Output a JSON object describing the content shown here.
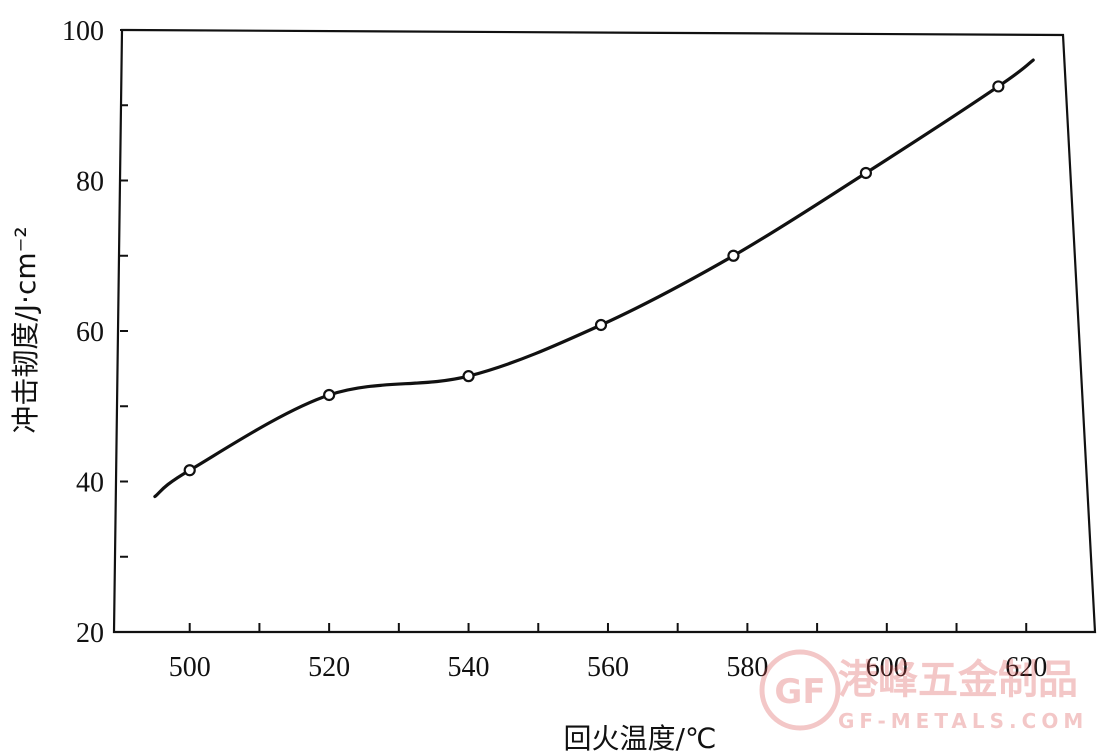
{
  "chart_data": {
    "type": "line",
    "xlabel": "回火温度/℃",
    "ylabel": "冲击韧度/J·cm⁻²",
    "xlim": [
      490,
      628
    ],
    "ylim": [
      20,
      100
    ],
    "x_ticks": [
      "500",
      "520",
      "540",
      "560",
      "580",
      "600",
      "620"
    ],
    "y_ticks": [
      "20",
      "40",
      "60",
      "80",
      "100"
    ],
    "grid": false,
    "series": [
      {
        "x": [
          500,
          520,
          540,
          559,
          578,
          597,
          616
        ],
        "y": [
          41.5,
          51.5,
          54,
          60.8,
          70,
          81,
          92.5
        ],
        "markers": "open-circle",
        "curve_start": [
          495,
          38
        ],
        "curve_end": [
          621,
          96
        ]
      }
    ],
    "line_color": "#111111"
  },
  "watermark": {
    "cn_text": "港峰五金制品",
    "en_text": "GF-METALS.COM",
    "logo_text": "GF",
    "color": "#d94a4a"
  }
}
